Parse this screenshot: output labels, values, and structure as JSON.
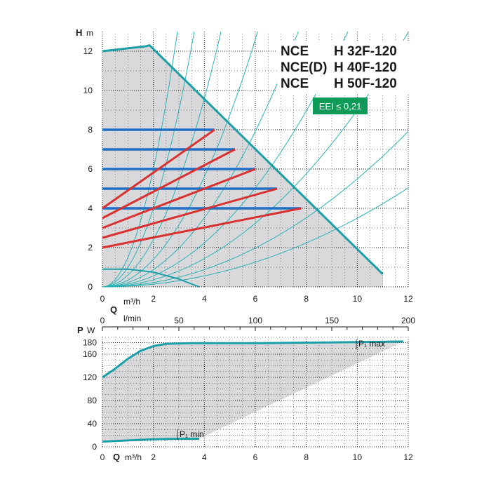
{
  "model_titles": [
    {
      "series": "NCE",
      "model": "H 32F-120"
    },
    {
      "series": "NCE(D)",
      "model": "H 40F-120"
    },
    {
      "series": "NCE",
      "model": "H 50F-120"
    }
  ],
  "eei_badge": "EEI ≤ 0,21",
  "colors": {
    "max_curve": "#1a9fa8",
    "constant_pressure": "#1f6fc4",
    "proportional_pressure": "#d93030",
    "system_curves": "#27b3b6",
    "envelope_fill": "#d9d9dc",
    "eei_badge": "#0e9a57",
    "grid": "#1a1a1a"
  },
  "chart_data": [
    {
      "type": "line",
      "name": "head-curve",
      "ylabel_symbol": "H",
      "ylabel_unit": "m",
      "xlabel_symbol": "Q",
      "xlabel_unit": "m³/h",
      "secondary_xlabel_unit": "l/min",
      "xlim": [
        0,
        12
      ],
      "ylim": [
        0,
        13
      ],
      "secondary_xlim": [
        0,
        200
      ],
      "x_ticks": [
        0,
        2,
        4,
        6,
        8,
        10,
        12
      ],
      "y_ticks": [
        0,
        2,
        4,
        6,
        8,
        10,
        12
      ],
      "secondary_x_ticks": [
        0,
        50,
        100,
        150,
        200
      ],
      "grid": true,
      "max_curve": [
        [
          0,
          12.0
        ],
        [
          1.7,
          12.25
        ],
        [
          1.85,
          12.3
        ],
        [
          11.0,
          0.65
        ]
      ],
      "constant_pressure": [
        {
          "h": 8,
          "x": [
            0,
            4.4
          ]
        },
        {
          "h": 7,
          "x": [
            0,
            5.2
          ]
        },
        {
          "h": 6,
          "x": [
            0,
            6.0
          ]
        },
        {
          "h": 5,
          "x": [
            0,
            6.85
          ]
        },
        {
          "h": 4,
          "x": [
            0,
            7.8
          ]
        }
      ],
      "proportional_pressure": [
        [
          [
            0,
            4.0
          ],
          [
            4.4,
            8.0
          ]
        ],
        [
          [
            0,
            3.5
          ],
          [
            5.2,
            7.0
          ]
        ],
        [
          [
            0,
            3.0
          ],
          [
            6.0,
            6.0
          ]
        ],
        [
          [
            0,
            2.5
          ],
          [
            6.85,
            5.0
          ]
        ],
        [
          [
            0,
            2.0
          ],
          [
            7.8,
            4.0
          ]
        ]
      ],
      "min_curve": [
        [
          0,
          0.9
        ],
        [
          1.0,
          0.9
        ],
        [
          2.0,
          0.75
        ],
        [
          3.0,
          0.4
        ],
        [
          3.8,
          0.0
        ]
      ],
      "system_curve_coefficients": [
        1.5,
        1.0,
        0.6,
        0.35,
        0.22,
        0.14,
        0.09,
        0.055,
        0.035
      ]
    },
    {
      "type": "line",
      "name": "power-curve",
      "ylabel_symbol": "P",
      "ylabel_unit": "W",
      "xlabel_symbol": "Q",
      "xlabel_unit": "m³/h",
      "xlim": [
        0,
        12
      ],
      "ylim": [
        0,
        200
      ],
      "x_ticks": [
        0,
        2,
        4,
        6,
        8,
        10,
        12
      ],
      "y_ticks": [
        0,
        40,
        80,
        120,
        160,
        180
      ],
      "grid": true,
      "series": [
        {
          "name": "P₁ max",
          "values": [
            [
              0,
              120
            ],
            [
              0.5,
              135
            ],
            [
              1.0,
              152
            ],
            [
              1.5,
              166
            ],
            [
              2.0,
              174
            ],
            [
              2.5,
              178
            ],
            [
              3.5,
              179
            ],
            [
              6.0,
              179
            ],
            [
              8.0,
              180
            ],
            [
              10.0,
              181
            ],
            [
              11.8,
              182
            ]
          ]
        },
        {
          "name": "P₁ min",
          "values": [
            [
              0,
              9
            ],
            [
              1.0,
              11
            ],
            [
              2.0,
              13
            ],
            [
              3.0,
              14
            ],
            [
              3.8,
              14
            ]
          ]
        }
      ]
    }
  ]
}
